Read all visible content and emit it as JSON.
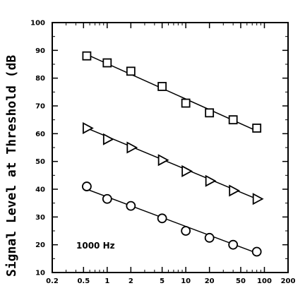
{
  "chart_data": {
    "type": "scatter",
    "title": "",
    "xlabel": "",
    "ylabel": "Signal Level at Threshold (dB",
    "xscale": "log",
    "xlim": [
      0.2,
      200
    ],
    "ylim": [
      10,
      100
    ],
    "x_ticks": [
      0.2,
      0.5,
      1,
      2,
      5,
      10,
      20,
      50,
      100,
      200
    ],
    "x_tick_labels": [
      "0.2",
      "0.5",
      "1",
      "2",
      "5",
      "10",
      "20",
      "50",
      "100",
      "200"
    ],
    "y_ticks": [
      10,
      20,
      30,
      40,
      50,
      60,
      70,
      80,
      90,
      100
    ],
    "y_tick_labels": [
      "10",
      "20",
      "30",
      "40",
      "50",
      "60",
      "70",
      "80",
      "90",
      "100"
    ],
    "grid": false,
    "annotation": "1000 Hz",
    "series": [
      {
        "marker": "square",
        "x": [
          0.55,
          1,
          2,
          5,
          10,
          20,
          40,
          80
        ],
        "y": [
          88,
          85.5,
          82.5,
          77,
          71,
          67.5,
          65,
          62
        ],
        "fit_line": {
          "x": [
            0.55,
            80
          ],
          "y": [
            88.5,
            61
          ]
        }
      },
      {
        "marker": "triangle-right",
        "x": [
          0.55,
          1,
          2,
          5,
          10,
          20,
          40,
          80
        ],
        "y": [
          62,
          58,
          55,
          50.5,
          46.5,
          43,
          39.5,
          36.5
        ],
        "fit_line": {
          "x": [
            0.55,
            80
          ],
          "y": [
            62,
            36.5
          ]
        }
      },
      {
        "marker": "circle",
        "x": [
          0.55,
          1,
          2,
          5,
          10,
          20,
          40,
          80
        ],
        "y": [
          41,
          36.5,
          34,
          29.5,
          25,
          22.5,
          20,
          17.5
        ],
        "fit_line": {
          "x": [
            0.55,
            80
          ],
          "y": [
            40,
            17
          ]
        }
      }
    ]
  }
}
